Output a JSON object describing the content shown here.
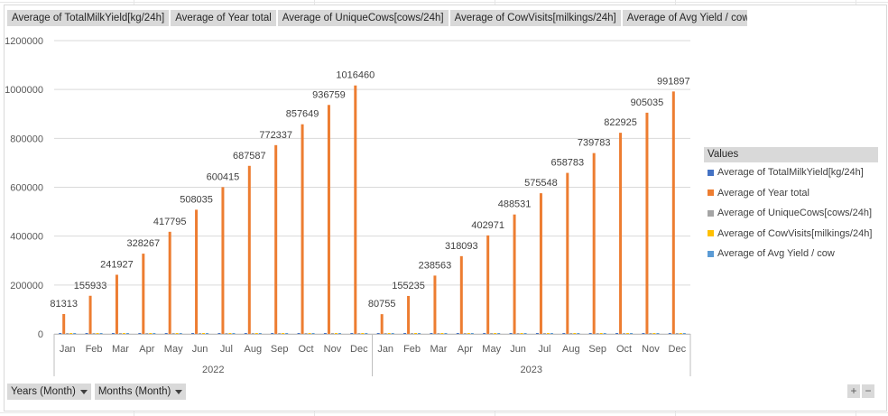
{
  "field_buttons": [
    "Average of TotalMilkYield[kg/24h]",
    "Average of Year total",
    "Average of UniqueCows[cows/24h]",
    "Average of CowVisits[milkings/24h]",
    "Average of Avg Yield / cow"
  ],
  "axis_field_buttons": {
    "years": "Years (Month)",
    "months": "Months (Month)"
  },
  "legend": {
    "title": "Values",
    "items": [
      {
        "label": "Average of TotalMilkYield[kg/24h]",
        "color": "#4472c4"
      },
      {
        "label": "Average of Year total",
        "color": "#ed7d31"
      },
      {
        "label": "Average of UniqueCows[cows/24h]",
        "color": "#a5a5a5"
      },
      {
        "label": "Average of CowVisits[milkings/24h]",
        "color": "#ffc000"
      },
      {
        "label": "Average of Avg Yield / cow",
        "color": "#5b9bd5"
      }
    ]
  },
  "zoom": {
    "plus": "+",
    "minus": "−"
  },
  "chart_data": {
    "type": "bar",
    "title": "",
    "xlabel": "",
    "ylabel": "",
    "ylim": [
      0,
      1200000
    ],
    "yticks": [
      0,
      200000,
      400000,
      600000,
      800000,
      1000000,
      1200000
    ],
    "grid": true,
    "legend_position": "right",
    "groups": [
      {
        "label": "2022",
        "categories": [
          "Jan",
          "Feb",
          "Mar",
          "Apr",
          "May",
          "Jun",
          "Jul",
          "Aug",
          "Sep",
          "Oct",
          "Nov",
          "Dec"
        ]
      },
      {
        "label": "2023",
        "categories": [
          "Jan",
          "Feb",
          "Mar",
          "Apr",
          "May",
          "Jun",
          "Jul",
          "Aug",
          "Sep",
          "Oct",
          "Nov",
          "Dec"
        ]
      }
    ],
    "series": [
      {
        "name": "Average of TotalMilkYield[kg/24h]",
        "color": "#4472c4",
        "values": [
          2620,
          2780,
          2640,
          2690,
          2620,
          2590,
          2610,
          2600,
          2560,
          2640,
          2510,
          2570,
          2610,
          2660,
          2680,
          2640,
          2570,
          2570,
          2620,
          2640,
          2640,
          2640,
          2570,
          2540
        ]
      },
      {
        "name": "Average of Year total",
        "color": "#ed7d31",
        "values": [
          81313,
          155933,
          241927,
          328267,
          417795,
          508035,
          600415,
          687587,
          772337,
          857649,
          936759,
          1016460,
          80755,
          155235,
          238563,
          318093,
          402971,
          488531,
          575548,
          658783,
          739783,
          822925,
          905035,
          991897
        ]
      },
      {
        "name": "Average of UniqueCows[cows/24h]",
        "color": "#a5a5a5",
        "values": [
          75,
          76,
          76,
          76,
          75,
          75,
          76,
          75,
          74,
          75,
          74,
          74,
          74,
          75,
          76,
          75,
          74,
          74,
          75,
          75,
          75,
          75,
          74,
          74
        ]
      },
      {
        "name": "Average of CowVisits[milkings/24h]",
        "color": "#ffc000",
        "values": [
          210,
          212,
          211,
          210,
          208,
          207,
          208,
          209,
          206,
          208,
          204,
          205,
          206,
          208,
          209,
          208,
          206,
          205,
          207,
          208,
          208,
          207,
          205,
          204
        ]
      },
      {
        "name": "Average of Avg Yield / cow",
        "color": "#5b9bd5",
        "values": [
          35,
          36,
          35,
          35,
          35,
          35,
          34,
          35,
          35,
          35,
          34,
          35,
          35,
          35,
          35,
          35,
          35,
          35,
          35,
          35,
          35,
          35,
          35,
          34
        ]
      }
    ],
    "data_labels_series": "Average of Year total"
  }
}
